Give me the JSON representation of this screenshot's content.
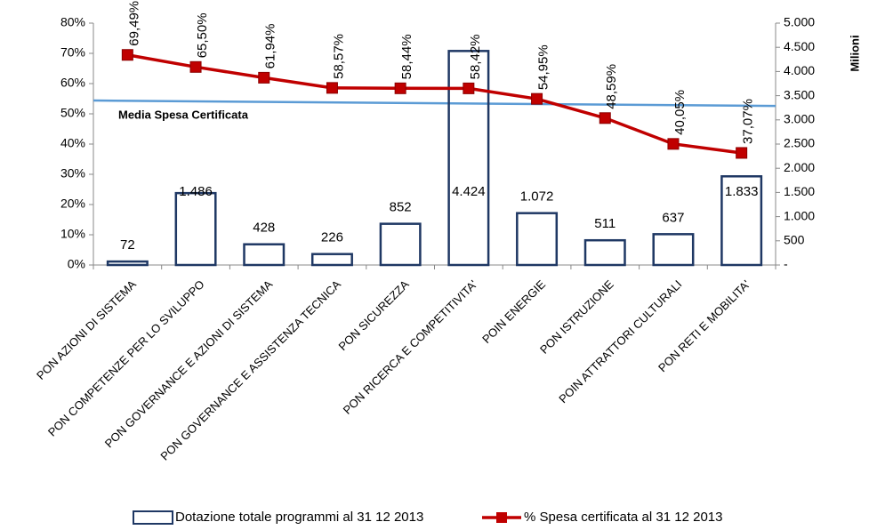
{
  "chart_data": {
    "type": "bar_line",
    "categories": [
      "PON AZIONI DI SISTEMA",
      "PON COMPETENZE PER LO SVILUPPO",
      "PON GOVERNANCE E AZIONI DI SISTEMA",
      "PON GOVERNANCE E ASSISTENZA TECNICA",
      "PON SICUREZZA",
      "PON RICERCA E COMPETITIVITA'",
      "POIN ENERGIE",
      "PON ISTRUZIONE",
      "POIN ATTRATTORI CULTURALI",
      "PON RETI E MOBILITA'"
    ],
    "series": [
      {
        "name": "Dotazione totale programmi al 31 12 2013",
        "type": "bar",
        "axis": "y2",
        "color": "#1f3864",
        "values": [
          72,
          1486,
          428,
          226,
          852,
          4424,
          1072,
          511,
          637,
          1833
        ],
        "value_labels": [
          "72",
          "1.486",
          "428",
          "226",
          "852",
          "4.424",
          "1.072",
          "511",
          "637",
          "1.833"
        ]
      },
      {
        "name": "% Spesa certificata al 31 12 2013",
        "type": "line",
        "axis": "y",
        "color": "#c00000",
        "values": [
          69.49,
          65.5,
          61.94,
          58.57,
          58.44,
          58.42,
          54.95,
          48.59,
          40.05,
          37.07
        ],
        "value_labels": [
          "69,49%",
          "65,50%",
          "61,94%",
          "58,57%",
          "58,44%",
          "58,42%",
          "54,95%",
          "48,59%",
          "40,05%",
          "37,07%"
        ]
      }
    ],
    "average_line": {
      "label": "Media Spesa Certificata",
      "values": [
        54.4,
        52.6
      ],
      "color": "#5b9bd5"
    },
    "ylim": [
      0,
      80
    ],
    "yticks": [
      {
        "value": 0,
        "label": "0%"
      },
      {
        "value": 10,
        "label": "10%"
      },
      {
        "value": 20,
        "label": "20%"
      },
      {
        "value": 30,
        "label": "30%"
      },
      {
        "value": 40,
        "label": "40%"
      },
      {
        "value": 50,
        "label": "50%"
      },
      {
        "value": 60,
        "label": "60%"
      },
      {
        "value": 70,
        "label": "70%"
      },
      {
        "value": 80,
        "label": "80%"
      }
    ],
    "y2lim": [
      0,
      5000
    ],
    "y2ticks": [
      {
        "value": 0,
        "label": "-"
      },
      {
        "value": 500,
        "label": "500"
      },
      {
        "value": 1000,
        "label": "1.000"
      },
      {
        "value": 1500,
        "label": "1.500"
      },
      {
        "value": 2000,
        "label": "2.000"
      },
      {
        "value": 2500,
        "label": "2.500"
      },
      {
        "value": 3000,
        "label": "3.000"
      },
      {
        "value": 3500,
        "label": "3.500"
      },
      {
        "value": 4000,
        "label": "4.000"
      },
      {
        "value": 4500,
        "label": "4.500"
      },
      {
        "value": 5000,
        "label": "5.000"
      }
    ],
    "y2_label": "Milioni"
  }
}
